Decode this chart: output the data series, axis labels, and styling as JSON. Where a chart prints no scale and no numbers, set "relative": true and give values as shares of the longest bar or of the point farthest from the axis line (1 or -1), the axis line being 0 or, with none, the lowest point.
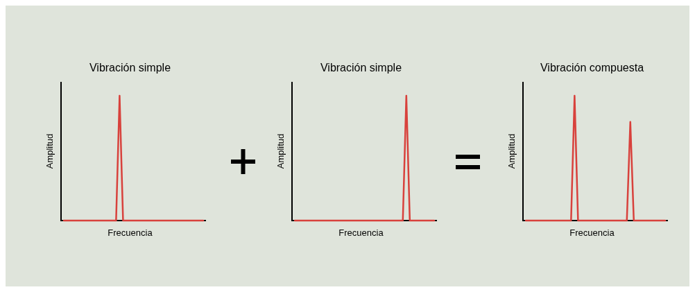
{
  "chart_data": [
    {
      "type": "line",
      "title": "Vibración simple",
      "xlabel": "Frecuencia",
      "ylabel": "Amplitud",
      "relative": true,
      "marker": "none",
      "line_style": "solid",
      "categories": [
        null,
        null,
        null,
        null,
        null,
        null,
        null,
        null,
        null,
        null,
        null,
        null,
        null,
        null,
        null,
        null,
        null,
        null,
        null,
        null,
        null,
        null,
        null,
        null,
        null,
        null,
        null,
        null,
        null,
        null,
        null,
        null,
        null,
        null,
        null,
        null,
        null,
        null,
        null,
        null,
        null
      ],
      "series": [
        {
          "color": "#d8413c",
          "values": [
            0,
            0,
            0,
            0,
            0,
            0,
            0,
            0,
            0,
            0,
            0,
            0,
            0,
            0,
            0,
            0,
            1,
            0,
            0,
            0,
            0,
            0,
            0,
            0,
            0,
            0,
            0,
            0,
            0,
            0,
            0,
            0,
            0,
            0,
            0,
            0,
            0,
            0,
            0,
            0,
            0
          ]
        }
      ]
    },
    {
      "type": "line",
      "title": "Vibración simple",
      "xlabel": "Frecuencia",
      "ylabel": "Amplitud",
      "relative": true,
      "marker": "none",
      "line_style": "solid",
      "categories": [
        null,
        null,
        null,
        null,
        null,
        null,
        null,
        null,
        null,
        null,
        null,
        null,
        null,
        null,
        null,
        null,
        null,
        null,
        null,
        null,
        null,
        null,
        null,
        null,
        null,
        null,
        null,
        null,
        null,
        null,
        null,
        null,
        null,
        null,
        null,
        null,
        null,
        null,
        null,
        null,
        null
      ],
      "series": [
        {
          "color": "#d8413c",
          "values": [
            0,
            0,
            0,
            0,
            0,
            0,
            0,
            0,
            0,
            0,
            0,
            0,
            0,
            0,
            0,
            0,
            0,
            0,
            0,
            0,
            0,
            0,
            0,
            0,
            0,
            0,
            0,
            0,
            0,
            0,
            0,
            0,
            1,
            0,
            0,
            0,
            0,
            0,
            0,
            0,
            0
          ]
        }
      ]
    },
    {
      "type": "line",
      "title": "Vibración compuesta",
      "xlabel": "Frecuencia",
      "ylabel": "Amplitud",
      "relative": true,
      "marker": "none",
      "line_style": "solid",
      "categories": [
        null,
        null,
        null,
        null,
        null,
        null,
        null,
        null,
        null,
        null,
        null,
        null,
        null,
        null,
        null,
        null,
        null,
        null,
        null,
        null,
        null,
        null,
        null,
        null,
        null,
        null,
        null,
        null,
        null,
        null,
        null,
        null,
        null,
        null,
        null,
        null,
        null,
        null,
        null,
        null,
        null
      ],
      "series": [
        {
          "color": "#d8413c",
          "values": [
            0,
            0,
            0,
            0,
            0,
            0,
            0,
            0,
            0,
            0,
            0,
            0,
            0,
            0,
            1,
            0,
            0,
            0,
            0,
            0,
            0,
            0,
            0,
            0,
            0,
            0,
            0,
            0,
            0,
            0,
            0.79,
            0,
            0,
            0,
            0,
            0,
            0,
            0,
            0,
            0,
            0
          ]
        }
      ]
    }
  ]
}
